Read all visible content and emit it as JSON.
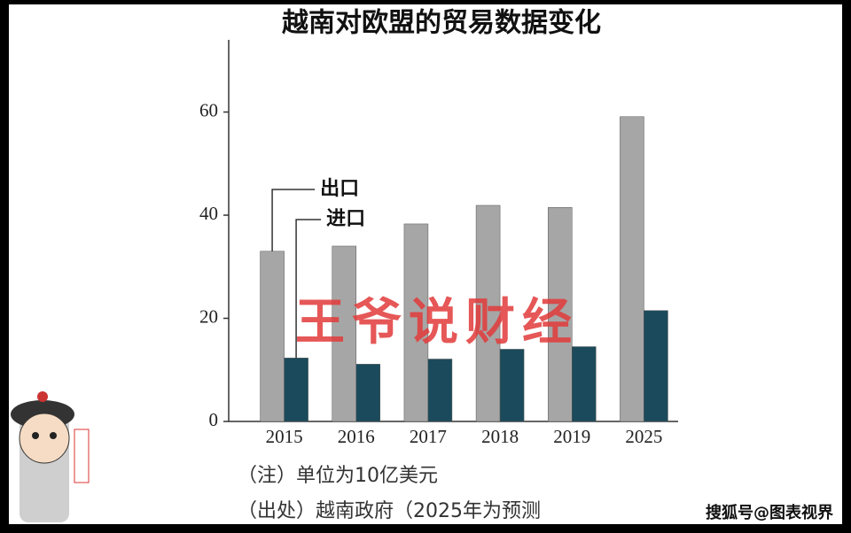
{
  "chart_data": {
    "type": "bar",
    "title": "越南对欧盟的贸易数据变化",
    "categories": [
      "2015",
      "2016",
      "2017",
      "2018",
      "2019",
      "2025"
    ],
    "series": [
      {
        "name": "出口",
        "color": "#a6a6a6",
        "values": [
          33,
          34,
          38.3,
          41.9,
          41.5,
          59.1
        ]
      },
      {
        "name": "进口",
        "color": "#1b4a5c",
        "values": [
          12.3,
          11.1,
          12.1,
          14,
          14.5,
          21.5
        ]
      }
    ],
    "ylim": [
      0,
      74
    ],
    "yticks": [
      0,
      20,
      40,
      60
    ],
    "notes": [
      "（注）单位为10亿美元",
      "（出处）越南政府（2025年为预测"
    ],
    "watermark": "王爷说财经",
    "credit": "搜狐号@图表视界"
  }
}
